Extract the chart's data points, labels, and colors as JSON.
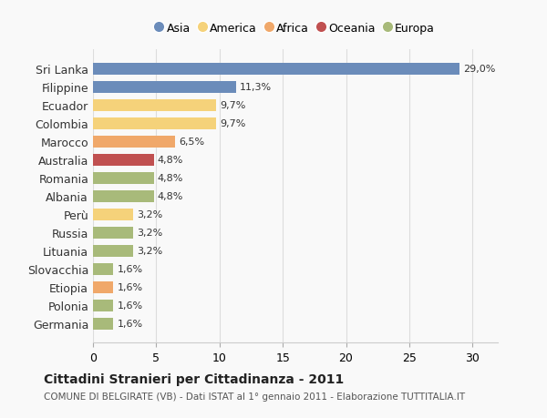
{
  "categories": [
    "Sri Lanka",
    "Filippine",
    "Ecuador",
    "Colombia",
    "Marocco",
    "Australia",
    "Romania",
    "Albania",
    "Perù",
    "Russia",
    "Lituania",
    "Slovacchia",
    "Etiopia",
    "Polonia",
    "Germania"
  ],
  "values": [
    29.0,
    11.3,
    9.7,
    9.7,
    6.5,
    4.8,
    4.8,
    4.8,
    3.2,
    3.2,
    3.2,
    1.6,
    1.6,
    1.6,
    1.6
  ],
  "labels": [
    "29,0%",
    "11,3%",
    "9,7%",
    "9,7%",
    "6,5%",
    "4,8%",
    "4,8%",
    "4,8%",
    "3,2%",
    "3,2%",
    "3,2%",
    "1,6%",
    "1,6%",
    "1,6%",
    "1,6%"
  ],
  "colors": [
    "#6b8cba",
    "#6b8cba",
    "#f5d27a",
    "#f5d27a",
    "#f0a86a",
    "#c05050",
    "#a8ba7a",
    "#a8ba7a",
    "#f5d27a",
    "#a8ba7a",
    "#a8ba7a",
    "#a8ba7a",
    "#f0a86a",
    "#a8ba7a",
    "#a8ba7a"
  ],
  "legend": [
    {
      "label": "Asia",
      "color": "#6b8cba"
    },
    {
      "label": "America",
      "color": "#f5d27a"
    },
    {
      "label": "Africa",
      "color": "#f0a86a"
    },
    {
      "label": "Oceania",
      "color": "#c05050"
    },
    {
      "label": "Europa",
      "color": "#a8ba7a"
    }
  ],
  "xlim": [
    0,
    32
  ],
  "xticks": [
    0,
    5,
    10,
    15,
    20,
    25,
    30
  ],
  "title": "Cittadini Stranieri per Cittadinanza - 2011",
  "subtitle": "COMUNE DI BELGIRATE (VB) - Dati ISTAT al 1° gennaio 2011 - Elaborazione TUTTITALIA.IT",
  "bg_color": "#f9f9f9",
  "bar_height": 0.65
}
